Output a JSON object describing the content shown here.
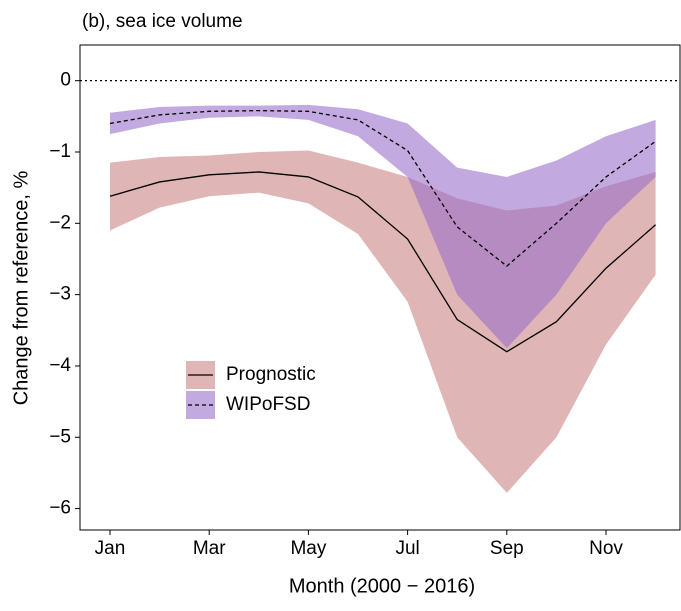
{
  "chart_data": {
    "type": "line",
    "title": "(b), sea ice volume",
    "x_label": "Month (2000 − 2016)",
    "y_label": "Change from reference, %",
    "categories": [
      "Jan",
      null,
      "Mar",
      null,
      "May",
      null,
      "Jul",
      null,
      "Sep",
      null,
      "Nov",
      null
    ],
    "ylim": [
      -6.3,
      0.5
    ],
    "yticks": [
      {
        "value": -6,
        "label": "−6"
      },
      {
        "value": -5,
        "label": "−5"
      },
      {
        "value": -4,
        "label": "−4"
      },
      {
        "value": -3,
        "label": "−3"
      },
      {
        "value": -2,
        "label": "−2"
      },
      {
        "value": -1,
        "label": "−1"
      },
      0
    ],
    "reference_line": 0,
    "series": [
      {
        "name": "Prognostic",
        "color": "#000000",
        "band_color": "#c98484",
        "dash": false,
        "values": [
          -1.62,
          -1.42,
          -1.32,
          -1.28,
          -1.35,
          -1.63,
          -2.22,
          -3.35,
          -3.8,
          -3.38,
          -2.63,
          -2.02
        ],
        "lower": [
          -2.1,
          -1.78,
          -1.62,
          -1.57,
          -1.72,
          -2.15,
          -3.1,
          -5.0,
          -5.78,
          -5.0,
          -3.7,
          -2.72
        ],
        "upper": [
          -1.15,
          -1.07,
          -1.05,
          -1.0,
          -0.98,
          -1.15,
          -1.35,
          -1.65,
          -1.82,
          -1.75,
          -1.48,
          -1.28
        ]
      },
      {
        "name": "WIPoFSD",
        "color": "#000000",
        "band_color": "#9a6fcc",
        "dash": true,
        "values": [
          -0.6,
          -0.48,
          -0.43,
          -0.42,
          -0.43,
          -0.55,
          -0.98,
          -2.05,
          -2.6,
          -2.0,
          -1.35,
          -0.85
        ],
        "lower": [
          -0.75,
          -0.6,
          -0.52,
          -0.5,
          -0.55,
          -0.78,
          -1.35,
          -3.0,
          -3.75,
          -3.0,
          -2.0,
          -1.35
        ],
        "upper": [
          -0.45,
          -0.37,
          -0.35,
          -0.35,
          -0.34,
          -0.4,
          -0.6,
          -1.22,
          -1.35,
          -1.12,
          -0.78,
          -0.55
        ]
      }
    ]
  }
}
